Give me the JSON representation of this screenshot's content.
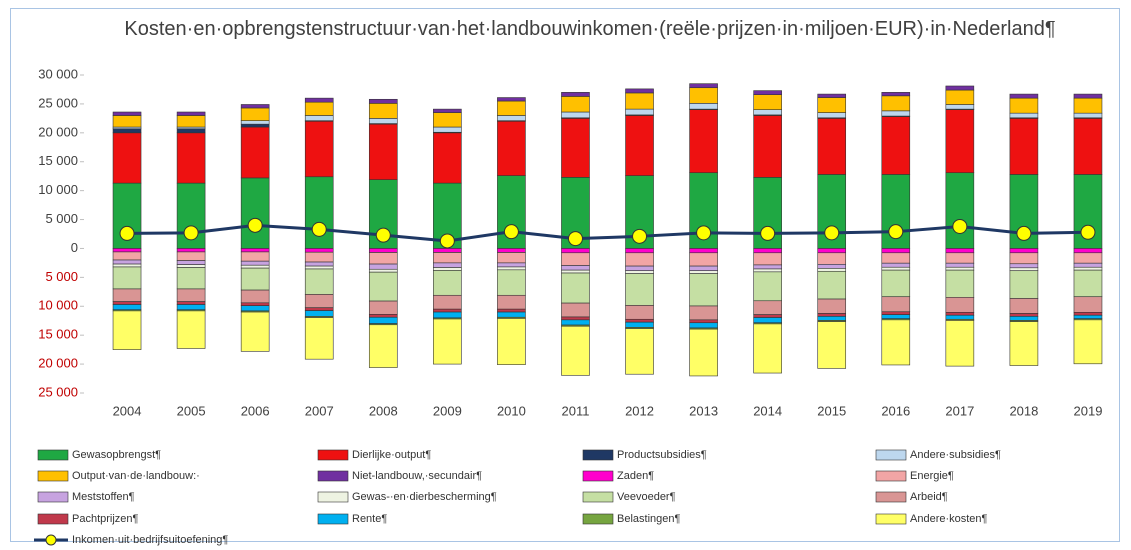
{
  "chart_data": {
    "type": "bar",
    "stacked": true,
    "title": "Kosten·en·opbrengstenstructuur·van·het·landbouwinkomen·(reële·prijzen·in·miljoen·EUR)·in·Nederland¶",
    "categories": [
      "2004",
      "2005",
      "2006",
      "2007",
      "2008",
      "2009",
      "2010",
      "2011",
      "2012",
      "2013",
      "2014",
      "2015",
      "2016",
      "2017",
      "2018",
      "2019"
    ],
    "ylim": [
      -25000,
      30000
    ],
    "yticks": [
      {
        "value": -25000,
        "label": "25 000"
      },
      {
        "value": -20000,
        "label": "20 000"
      },
      {
        "value": -15000,
        "label": "15 000"
      },
      {
        "value": -10000,
        "label": "10 000"
      },
      {
        "value": -5000,
        "label": "5 000"
      },
      0,
      {
        "value": 5000,
        "label": "5 000"
      },
      {
        "value": 10000,
        "label": "10 000"
      },
      {
        "value": 15000,
        "label": "15 000"
      },
      {
        "value": 20000,
        "label": "20 000"
      },
      {
        "value": 25000,
        "label": "25 000"
      },
      {
        "value": 30000,
        "label": "30 000"
      }
    ],
    "series": [
      {
        "name": "Gewasopbrengst¶",
        "color": "#1fa843",
        "values": [
          11300,
          11300,
          12200,
          12400,
          11900,
          11300,
          12600,
          12300,
          12600,
          13100,
          12300,
          12800,
          12800,
          13100,
          12800,
          12800
        ]
      },
      {
        "name": "Dierlijke·output¶",
        "color": "#ee1111",
        "values": [
          8700,
          8700,
          8800,
          9600,
          9600,
          8700,
          9400,
          10200,
          10400,
          10900,
          10700,
          9700,
          10000,
          10900,
          9700,
          9700
        ]
      },
      {
        "name": "Productsubsidies¶",
        "color": "#1f3864",
        "values": [
          700,
          700,
          500,
          100,
          100,
          100,
          100,
          100,
          100,
          100,
          100,
          100,
          100,
          100,
          100,
          100
        ]
      },
      {
        "name": "Andere·subsidies¶",
        "color": "#bdd7ee",
        "values": [
          300,
          300,
          600,
          900,
          900,
          900,
          900,
          1000,
          1000,
          1000,
          900,
          900,
          900,
          800,
          800,
          800
        ]
      },
      {
        "name": "Output·van·de·landbouw:·",
        "color": "#ffc000",
        "values": [
          2000,
          2000,
          2200,
          2300,
          2600,
          2500,
          2500,
          2700,
          2800,
          2700,
          2600,
          2600,
          2600,
          2500,
          2600,
          2600
        ]
      },
      {
        "name": "Niet-landbouw,·secundair¶",
        "color": "#7030a0",
        "values": [
          600,
          600,
          600,
          700,
          700,
          600,
          600,
          700,
          700,
          700,
          700,
          600,
          600,
          700,
          700,
          700
        ]
      },
      {
        "name": "Zaden¶",
        "color": "#ff00cc",
        "values": [
          -600,
          -600,
          -600,
          -650,
          -700,
          -700,
          -700,
          -750,
          -750,
          -750,
          -750,
          -750,
          -750,
          -750,
          -750,
          -750
        ]
      },
      {
        "name": "Energie¶",
        "color": "#f2a5a5",
        "values": [
          -1400,
          -1500,
          -1600,
          -1700,
          -2000,
          -1800,
          -1800,
          -2200,
          -2300,
          -2300,
          -2100,
          -2000,
          -1800,
          -1800,
          -1900,
          -1800
        ]
      },
      {
        "name": "Meststoffen¶",
        "color": "#c7a3e0",
        "values": [
          -700,
          -700,
          -700,
          -700,
          -900,
          -800,
          -700,
          -800,
          -800,
          -800,
          -700,
          -700,
          -700,
          -700,
          -700,
          -700
        ]
      },
      {
        "name": "Gewas-·en·dierbescherming¶",
        "color": "#eef3e2",
        "values": [
          -500,
          -500,
          -500,
          -500,
          -500,
          -500,
          -500,
          -500,
          -500,
          -500,
          -500,
          -500,
          -500,
          -500,
          -500,
          -500
        ]
      },
      {
        "name": "Veevoeder¶",
        "color": "#c5dfa3",
        "values": [
          -3800,
          -3700,
          -3800,
          -4400,
          -5000,
          -4300,
          -4400,
          -5200,
          -5500,
          -5600,
          -5000,
          -4800,
          -4600,
          -4700,
          -4800,
          -4600
        ]
      },
      {
        "name": "Arbeid¶",
        "color": "#d99594",
        "values": [
          -2200,
          -2200,
          -2200,
          -2300,
          -2300,
          -2400,
          -2400,
          -2400,
          -2400,
          -2400,
          -2400,
          -2500,
          -2600,
          -2600,
          -2600,
          -2700
        ]
      },
      {
        "name": "Pachtprijzen¶",
        "color": "#c0394b",
        "values": [
          -500,
          -500,
          -500,
          -500,
          -500,
          -500,
          -500,
          -500,
          -500,
          -500,
          -500,
          -500,
          -500,
          -500,
          -500,
          -500
        ]
      },
      {
        "name": "Rente¶",
        "color": "#00b0f0",
        "values": [
          -900,
          -900,
          -900,
          -1000,
          -1100,
          -1000,
          -900,
          -900,
          -900,
          -900,
          -900,
          -700,
          -700,
          -700,
          -700,
          -600
        ]
      },
      {
        "name": "Belastingen¶",
        "color": "#76a540",
        "values": [
          -200,
          -200,
          -200,
          -200,
          -200,
          -200,
          -200,
          -200,
          -200,
          -200,
          -200,
          -200,
          -200,
          -200,
          -200,
          -200
        ]
      },
      {
        "name": "Andere·kosten¶",
        "color": "#ffff66",
        "values": [
          -6700,
          -6500,
          -6800,
          -7200,
          -7400,
          -7800,
          -8000,
          -8500,
          -7900,
          -8100,
          -8500,
          -8100,
          -7800,
          -7900,
          -7600,
          -7600
        ]
      },
      {
        "name": "Inkomen·uit·bedrijfsuitoefening¶",
        "type": "line",
        "color": "#1f3864",
        "marker_color": "#ffff00",
        "values": [
          2600,
          2700,
          4000,
          3300,
          2300,
          1300,
          2900,
          1700,
          2100,
          2700,
          2600,
          2700,
          2900,
          3800,
          2600,
          2800
        ]
      }
    ]
  }
}
